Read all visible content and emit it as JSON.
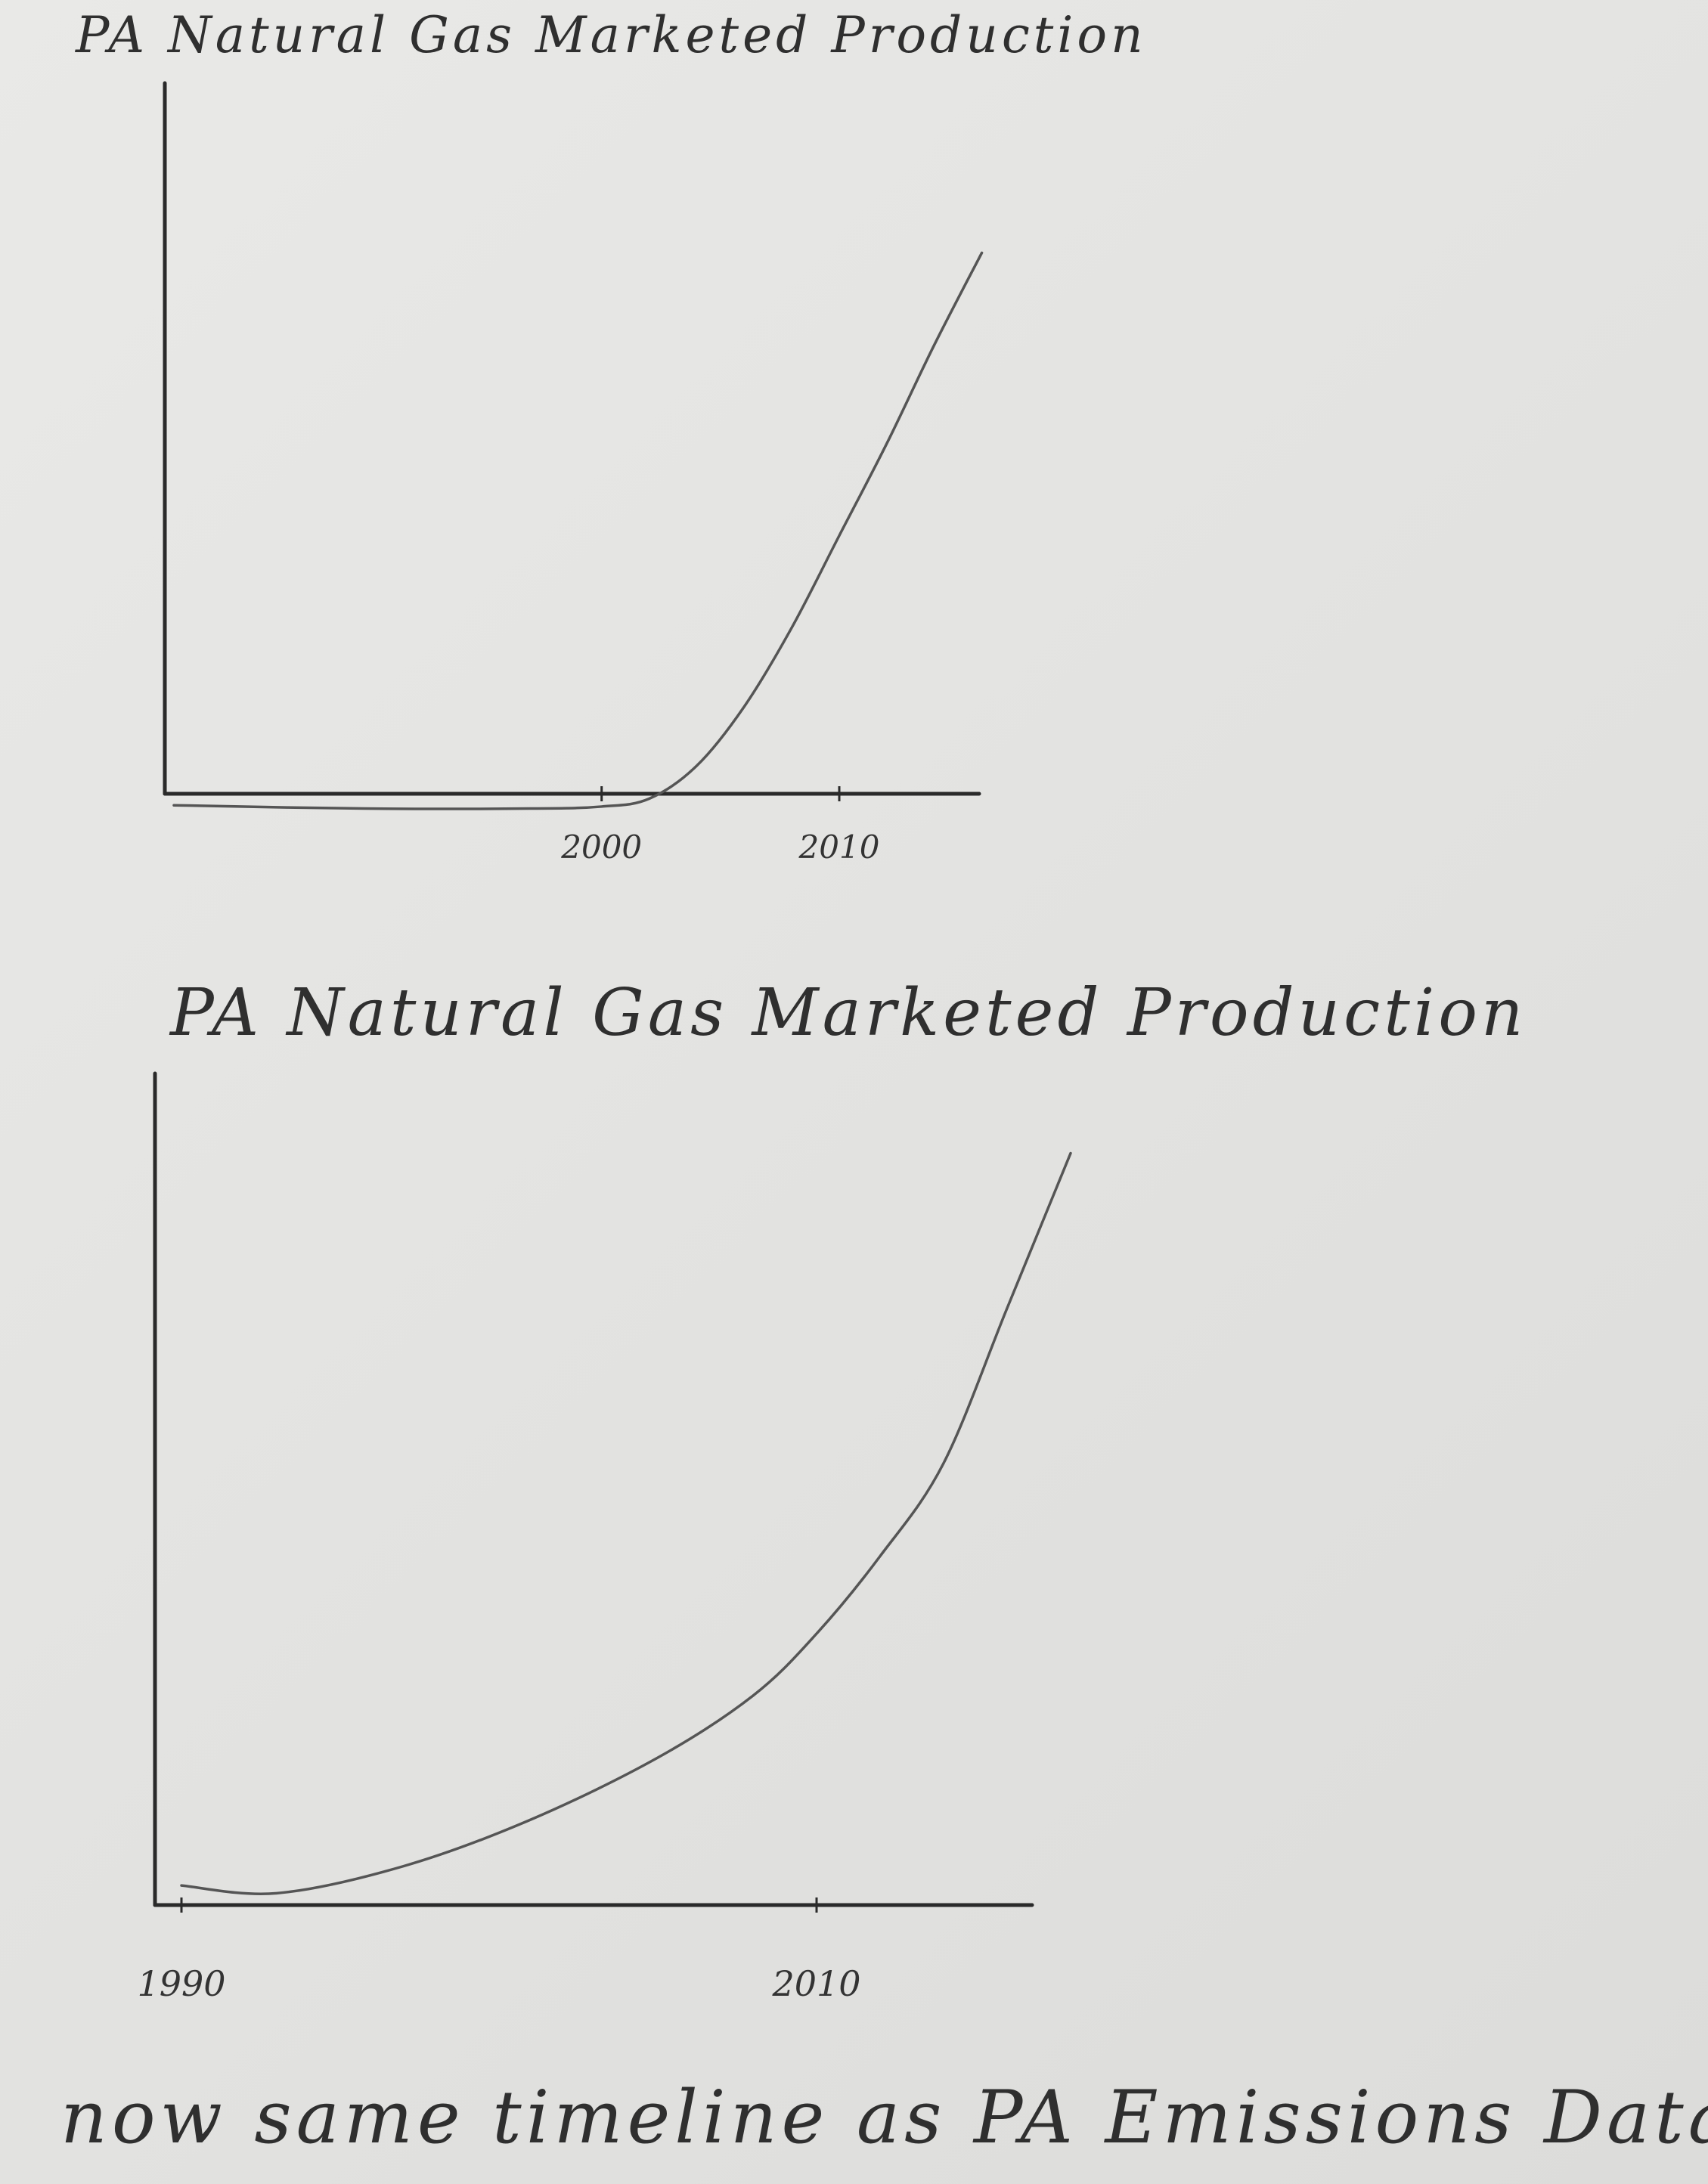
{
  "page": {
    "footer_note": "now same timeline as PA Emissions Data"
  },
  "chart_data": [
    {
      "type": "line",
      "title": "PA Natural Gas Marketed Production",
      "xlabel": "",
      "ylabel": "",
      "xlim": [
        1982,
        2017
      ],
      "ylim": [
        0,
        100
      ],
      "x_ticks": [
        2000,
        2010
      ],
      "grid": false,
      "series": [
        {
          "x": [
            1982,
            1990,
            1997,
            2000,
            2002,
            2004,
            2006,
            2008,
            2010,
            2012,
            2014,
            2016
          ],
          "values": [
            4,
            3.5,
            3.5,
            3.8,
            5,
            10,
            19,
            31,
            45,
            59,
            74,
            88
          ]
        }
      ]
    },
    {
      "type": "line",
      "title": "PA Natural Gas Marketed Production",
      "xlabel": "",
      "ylabel": "",
      "xlim": [
        1990,
        2020
      ],
      "ylim": [
        0,
        100
      ],
      "x_ticks": [
        1990,
        2010
      ],
      "grid": false,
      "series": [
        {
          "x": [
            1990,
            1993,
            1997,
            2001,
            2005,
            2008,
            2010,
            2012,
            2014,
            2016,
            2018
          ],
          "values": [
            3.5,
            2.5,
            6,
            12,
            20,
            28,
            36,
            46,
            58,
            78,
            98
          ]
        }
      ]
    }
  ]
}
